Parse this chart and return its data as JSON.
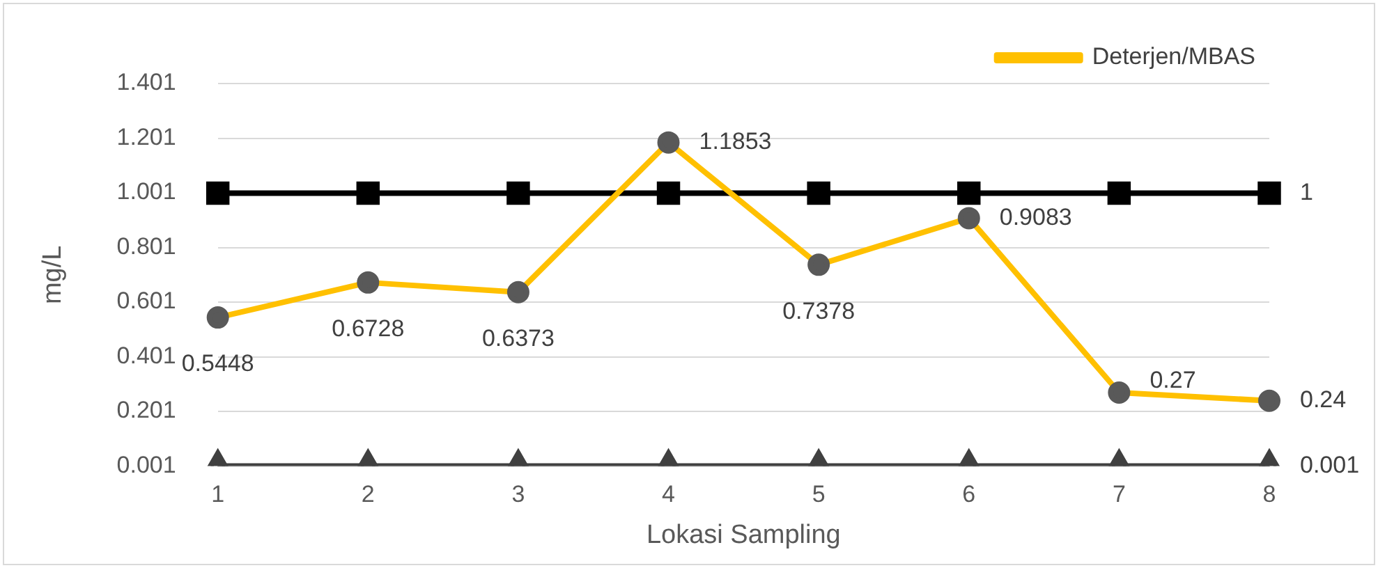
{
  "chart_data": {
    "type": "line",
    "xlabel": "Lokasi Sampling",
    "ylabel": "mg/L",
    "categories": [
      "1",
      "2",
      "3",
      "4",
      "5",
      "6",
      "7",
      "8"
    ],
    "series": [
      {
        "name": "Deterjen/MBAS",
        "color": "#ffc000",
        "marker": "circle",
        "values": [
          0.5448,
          0.6728,
          0.6373,
          1.1853,
          0.7378,
          0.9083,
          0.27,
          0.24
        ],
        "value_labels": [
          "0.5448",
          "0.6728",
          "0.6373",
          "1.1853",
          "0.7378",
          "0.9083",
          "0.27",
          "0.24"
        ]
      },
      {
        "color": "#000000",
        "marker": "square",
        "values": [
          1,
          1,
          1,
          1,
          1,
          1,
          1,
          1
        ],
        "value_labels": [
          null,
          null,
          null,
          null,
          null,
          null,
          null,
          "1"
        ]
      },
      {
        "color": "#404040",
        "marker": "triangle",
        "values": [
          0.001,
          0.001,
          0.001,
          0.001,
          0.001,
          0.001,
          0.001,
          0.001
        ],
        "value_labels": [
          null,
          null,
          null,
          null,
          null,
          null,
          null,
          "0.001"
        ]
      }
    ],
    "ylim": [
      0.001,
      1.401
    ],
    "yticks": [
      0.001,
      0.201,
      0.401,
      0.601,
      0.801,
      1.001,
      1.201,
      1.401
    ],
    "grid": "y",
    "legend": "top right"
  }
}
